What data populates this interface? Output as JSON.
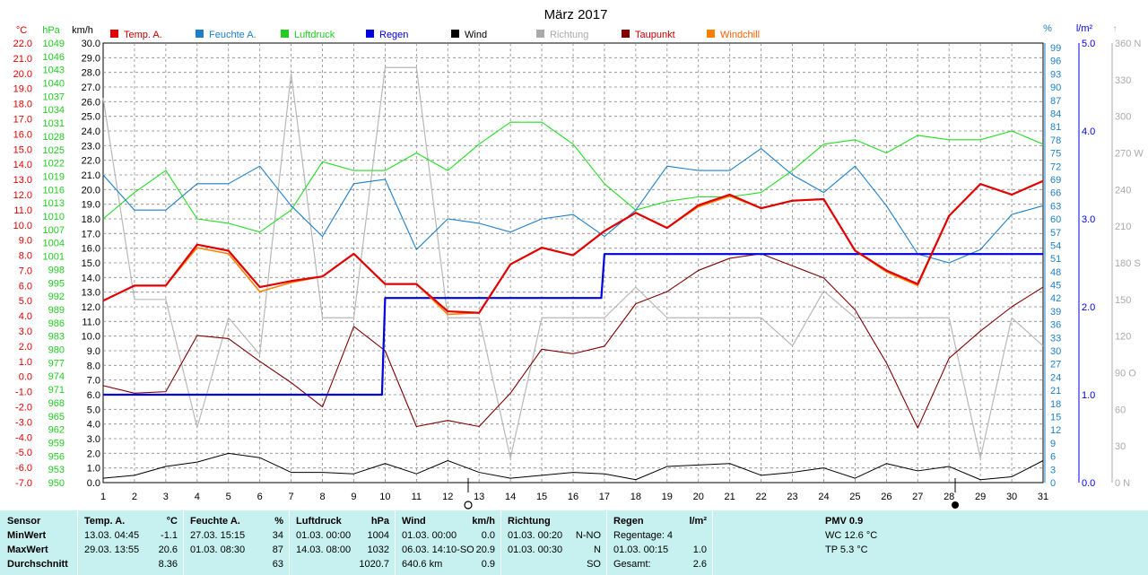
{
  "title": "März 2017",
  "units": {
    "temp": "°C",
    "pressure": "hPa",
    "wind": "km/h",
    "humidity": "%",
    "rain": "l/m²"
  },
  "legend": [
    {
      "label": "Temp. A.",
      "color": "#e00000"
    },
    {
      "label": "Feuchte A.",
      "color": "#1e7fc8"
    },
    {
      "label": "Luftdruck",
      "color": "#22cc22"
    },
    {
      "label": "Regen",
      "color": "#0000e0"
    },
    {
      "label": "Wind",
      "color": "#000000"
    },
    {
      "label": "Richtung",
      "color": "#aaaaaa"
    },
    {
      "label": "Taupunkt",
      "color": "#800000"
    },
    {
      "label": "Windchill",
      "color": "#ff8000"
    }
  ],
  "axes": {
    "temp": [
      "22.0",
      "21.0",
      "20.0",
      "19.0",
      "18.0",
      "17.0",
      "16.0",
      "15.0",
      "14.0",
      "13.0",
      "12.0",
      "11.0",
      "10.0",
      "9.0",
      "8.0",
      "7.0",
      "6.0",
      "5.0",
      "4.0",
      "3.0",
      "2.0",
      "1.0",
      "0.0",
      "-1.0",
      "-2.0",
      "-3.0",
      "-4.0",
      "-5.0",
      "-6.0",
      "-7.0"
    ],
    "pressure": [
      "1049",
      "1046",
      "1043",
      "1040",
      "1037",
      "1034",
      "1031",
      "1028",
      "1025",
      "1022",
      "1019",
      "1016",
      "1013",
      "1010",
      "1007",
      "1004",
      "1001",
      "998",
      "995",
      "992",
      "989",
      "986",
      "983",
      "980",
      "977",
      "974",
      "971",
      "968",
      "965",
      "962",
      "959",
      "956",
      "953",
      "950"
    ],
    "wind": [
      "30.0",
      "29.0",
      "28.0",
      "27.0",
      "26.0",
      "25.0",
      "24.0",
      "23.0",
      "22.0",
      "21.0",
      "20.0",
      "19.0",
      "18.0",
      "17.0",
      "16.0",
      "15.0",
      "14.0",
      "13.0",
      "12.0",
      "11.0",
      "10.0",
      "9.0",
      "8.0",
      "7.0",
      "6.0",
      "5.0",
      "4.0",
      "3.0",
      "2.0",
      "1.0",
      "0.0"
    ],
    "humidity": [
      "99",
      "96",
      "93",
      "90",
      "87",
      "84",
      "81",
      "78",
      "75",
      "72",
      "69",
      "66",
      "63",
      "60",
      "57",
      "54",
      "51",
      "48",
      "45",
      "42",
      "39",
      "36",
      "33",
      "30",
      "27",
      "24",
      "21",
      "18",
      "15",
      "12",
      "9",
      "6",
      "3",
      "0"
    ],
    "rain": [
      "5.0",
      "4.0",
      "3.0",
      "2.0",
      "1.0",
      "0.0"
    ],
    "direction": [
      "360 N",
      "330",
      "300",
      "270 W",
      "240",
      "210",
      "180 S",
      "150",
      "120",
      "90 O",
      "60",
      "30",
      "0 N"
    ]
  },
  "chart_data": {
    "type": "line",
    "x": [
      1,
      2,
      3,
      4,
      5,
      6,
      7,
      8,
      9,
      10,
      11,
      12,
      13,
      14,
      15,
      16,
      17,
      18,
      19,
      20,
      21,
      22,
      23,
      24,
      25,
      26,
      27,
      28,
      29,
      30,
      31
    ],
    "xlim": [
      1,
      31
    ],
    "series": [
      {
        "name": "Temp. A.",
        "axis": "temp",
        "ylim": [
          -7,
          22
        ],
        "values": [
          5.0,
          6.0,
          6.0,
          8.7,
          8.3,
          5.9,
          6.3,
          6.6,
          8.1,
          6.1,
          6.1,
          4.3,
          4.2,
          7.4,
          8.5,
          8.0,
          9.6,
          10.8,
          9.8,
          11.3,
          12.0,
          11.1,
          11.6,
          11.7,
          8.3,
          7.0,
          6.1,
          10.6,
          12.7,
          12.0,
          12.9
        ]
      },
      {
        "name": "Windchill",
        "axis": "temp",
        "ylim": [
          -7,
          22
        ],
        "values": [
          5.0,
          6.0,
          6.0,
          8.5,
          8.1,
          5.6,
          6.2,
          6.6,
          8.1,
          6.1,
          6.1,
          4.1,
          4.2,
          7.4,
          8.5,
          8.0,
          9.6,
          10.8,
          9.8,
          11.2,
          11.9,
          11.1,
          11.6,
          11.7,
          8.3,
          6.9,
          6.0,
          10.6,
          12.7,
          12.0,
          12.9
        ]
      },
      {
        "name": "Taupunkt",
        "axis": "temp",
        "ylim": [
          -7,
          22
        ],
        "values": [
          -0.6,
          -1.1,
          -1.0,
          2.7,
          2.5,
          1.0,
          -0.4,
          -2.0,
          3.3,
          1.7,
          -3.3,
          -2.9,
          -3.3,
          -1.1,
          1.8,
          1.5,
          2.0,
          4.8,
          5.6,
          7.0,
          7.8,
          8.1,
          7.3,
          6.5,
          4.4,
          0.9,
          -3.4,
          1.2,
          3.0,
          4.6,
          5.9
        ]
      },
      {
        "name": "Feuchte A.",
        "axis": "humidity",
        "ylim": [
          0,
          100
        ],
        "values": [
          70,
          62,
          62,
          68,
          68,
          72,
          63,
          56,
          68,
          69,
          53,
          60,
          59,
          57,
          60,
          61,
          56,
          62,
          72,
          71,
          71,
          76,
          70,
          66,
          72,
          63,
          52,
          50,
          53,
          61,
          63
        ]
      },
      {
        "name": "Luftdruck",
        "axis": "pressure",
        "ylim": [
          950,
          1050
        ],
        "values": [
          1010,
          1016,
          1021,
          1010,
          1009,
          1007,
          1012,
          1023,
          1021,
          1021,
          1025,
          1021,
          1027,
          1032,
          1032,
          1027,
          1018,
          1012,
          1014,
          1015,
          1015,
          1016,
          1021,
          1027,
          1028,
          1025,
          1029,
          1028,
          1028,
          1030,
          1027
        ]
      },
      {
        "name": "Regen",
        "axis": "rain",
        "ylim": [
          0,
          5
        ],
        "values": [
          1.0,
          1.0,
          1.0,
          1.0,
          1.0,
          1.0,
          1.0,
          1.0,
          1.0,
          2.1,
          2.1,
          2.1,
          2.1,
          2.1,
          2.1,
          2.1,
          2.6,
          2.6,
          2.6,
          2.6,
          2.6,
          2.6,
          2.6,
          2.6,
          2.6,
          2.6,
          2.6,
          2.6,
          2.6,
          2.6,
          2.6
        ]
      },
      {
        "name": "Wind",
        "axis": "wind",
        "ylim": [
          0,
          30
        ],
        "values": [
          0.3,
          0.5,
          1.1,
          1.4,
          2.0,
          1.7,
          0.7,
          0.7,
          0.6,
          1.3,
          0.6,
          1.5,
          0.7,
          0.3,
          0.5,
          0.7,
          0.6,
          0.2,
          1.1,
          1.2,
          1.3,
          0.5,
          0.7,
          1.0,
          0.3,
          1.3,
          0.8,
          1.1,
          0.2,
          0.4,
          1.5
        ]
      },
      {
        "name": "Richtung",
        "axis": "direction",
        "ylim": [
          0,
          360
        ],
        "values": [
          315,
          150,
          150,
          45,
          135,
          105,
          335,
          135,
          135,
          340,
          340,
          135,
          135,
          20,
          135,
          135,
          135,
          160,
          135,
          135,
          135,
          135,
          112,
          157,
          135,
          135,
          135,
          135,
          20,
          135,
          112
        ]
      }
    ]
  },
  "footer": {
    "sensor": {
      "title": "Sensor",
      "rows": [
        "MinWert",
        "MaxWert",
        "Durchschnitt"
      ]
    },
    "temp": {
      "title": "Temp. A.",
      "unit": "°C",
      "min_time": "13.03.  04:45",
      "min_val": "-1.1",
      "max_time": "29.03.  13:55",
      "max_val": "20.6",
      "avg": "8.36"
    },
    "humidity": {
      "title": "Feuchte A.",
      "unit": "%",
      "min_time": "27.03.  15:15",
      "min_val": "34",
      "max_time": "01.03.  08:30",
      "max_val": "87",
      "avg": "63"
    },
    "pressure": {
      "title": "Luftdruck",
      "unit": "hPa",
      "min_time": "01.03.  00:00",
      "min_val": "1004",
      "max_time": "14.03.  08:00",
      "max_val": "1032",
      "avg": "1020.7"
    },
    "wind": {
      "title": "Wind",
      "unit": "km/h",
      "min_time": "01.03.  00:00",
      "min_val": "0.0",
      "max_time": "06.03.  14:10-SO",
      "max_val": "20.9",
      "avg_label": "640.6 km",
      "avg": "0.9"
    },
    "direction": {
      "title": "Richtung",
      "min_time": "01.03.  00:20",
      "min_val": "N-NO",
      "max_time": "01.03.  00:30",
      "max_val": "N",
      "avg": "SO"
    },
    "rain": {
      "title": "Regen",
      "unit": "l/m²",
      "row1": "Regentage: 4",
      "row2_time": "01.03.  00:15",
      "row2_val": "1.0",
      "row3_label": "Gesamt:",
      "row3_val": "2.6"
    },
    "pmv": {
      "title": "PMV 0.9",
      "wc": "WC 12.6 °C",
      "tp": "TP 5.3 °C"
    }
  }
}
